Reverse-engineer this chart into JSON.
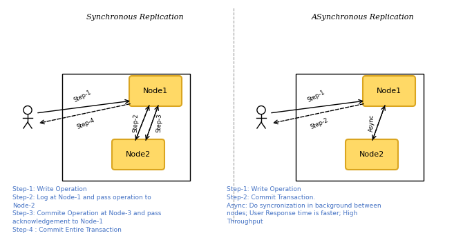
{
  "bg_color": "#ffffff",
  "node_fill": "#FFD966",
  "node_edge": "#DAA520",
  "box_edge": "#000000",
  "arrow_color": "#000000",
  "text_color": "#000000",
  "blue_color": "#4472C4",
  "left_title": "Synchronous Replication",
  "right_title": "ASynchronous Replication",
  "left_desc": "Step-1: Write Operation\nStep-2: Log at Node-1 and pass operation to\nNode-2\nStep-3: Commite Operation at Node-3 and pass\nacknowledgement to Node-1\nStep-4 : Commit Entire Transaction",
  "right_desc": "Step-1: Write Operation\nStep-2: Commit Transaction.\nAsync: Do syncronization in background between\nnodes; User Response time is faster; High\nThroughput"
}
